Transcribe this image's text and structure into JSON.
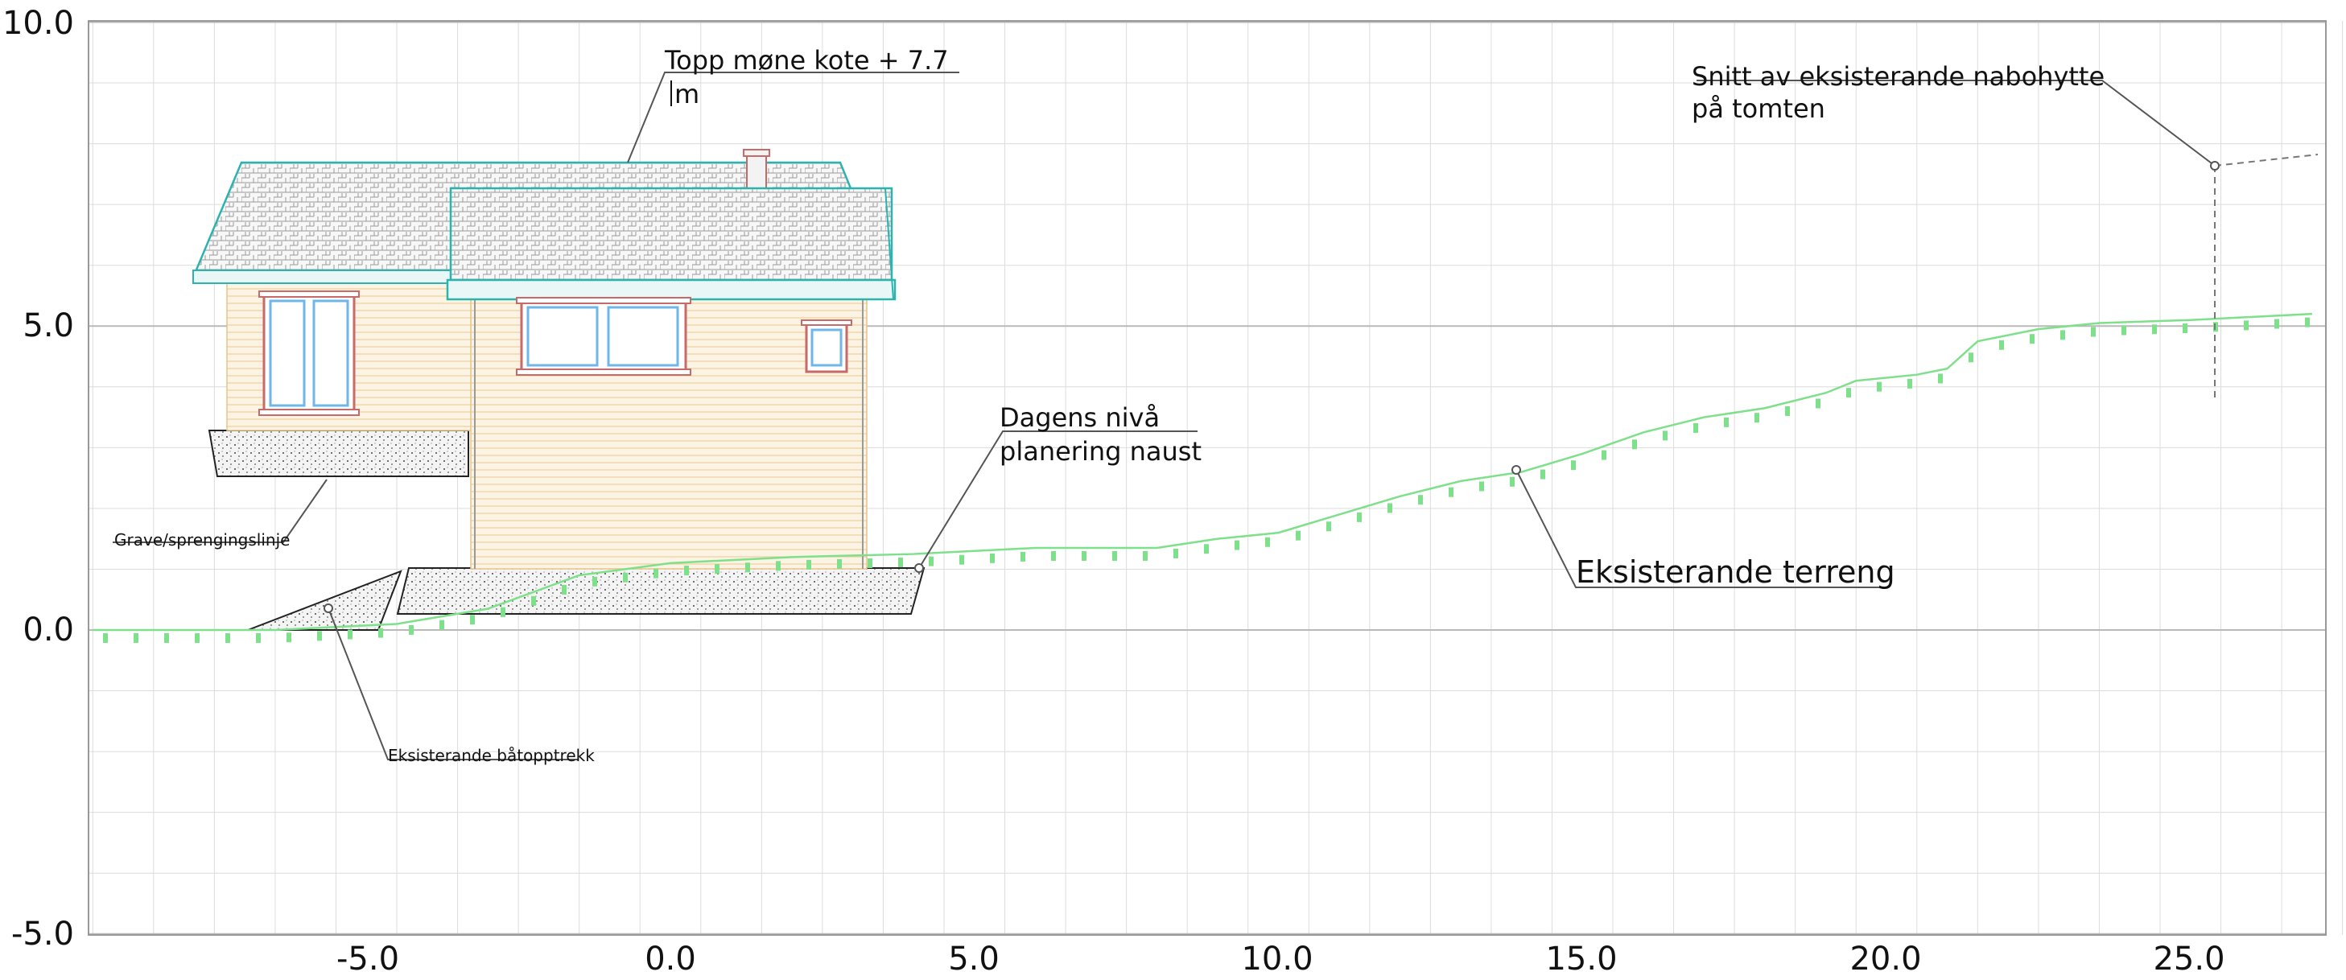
{
  "axes": {
    "x_ticks": [
      "-5.0",
      "0.0",
      "5.0",
      "10.0",
      "15.0",
      "20.0",
      "25.0"
    ],
    "y_ticks": [
      "10.0",
      "5.0",
      "0.0",
      "-5.0"
    ]
  },
  "labels": {
    "topp_line1": "Topp møne kote + 7.7",
    "topp_line2": "m",
    "snitt_line1": "Snitt av eksisterande nabohytte",
    "snitt_line2": "på tomten",
    "dagens_line1": "Dagens nivå",
    "dagens_line2": "planering naust",
    "eksisterande_terreng": "Eksisterande terreng",
    "grave": "Grave/sprengingslinje",
    "batopptrekk": "Eksisterande båtopptrekk"
  },
  "colors": {
    "terrain": "#7ee08a",
    "roof_edge": "#2bb3b0",
    "frame": "#c76a6a",
    "window": "#6fb7e8",
    "cladding": "#f3dcaa",
    "grid_major": "#b9b9b9",
    "grid_minor": "#dcdcdc"
  },
  "terrain_profile": [
    [
      -9.5,
      0.0
    ],
    [
      -6.5,
      0.0
    ],
    [
      -4.5,
      0.1
    ],
    [
      -3.0,
      0.35
    ],
    [
      -1.5,
      0.9
    ],
    [
      0,
      1.1
    ],
    [
      2,
      1.2
    ],
    [
      4,
      1.25
    ],
    [
      6,
      1.35
    ],
    [
      8,
      1.35
    ],
    [
      9,
      1.5
    ],
    [
      10,
      1.6
    ],
    [
      11,
      1.9
    ],
    [
      12,
      2.2
    ],
    [
      13,
      2.45
    ],
    [
      14,
      2.6
    ],
    [
      15,
      2.9
    ],
    [
      16,
      3.25
    ],
    [
      17,
      3.5
    ],
    [
      18,
      3.65
    ],
    [
      19,
      3.9
    ],
    [
      19.5,
      4.1
    ],
    [
      20.5,
      4.2
    ],
    [
      21,
      4.3
    ],
    [
      21.5,
      4.75
    ],
    [
      22.5,
      4.95
    ],
    [
      23.5,
      5.05
    ],
    [
      25,
      5.1
    ],
    [
      27,
      5.2
    ]
  ],
  "design_notes": {
    "ridge_elevation": 7.7,
    "existing_cabin_marker": [
      25.3,
      7.7
    ]
  }
}
